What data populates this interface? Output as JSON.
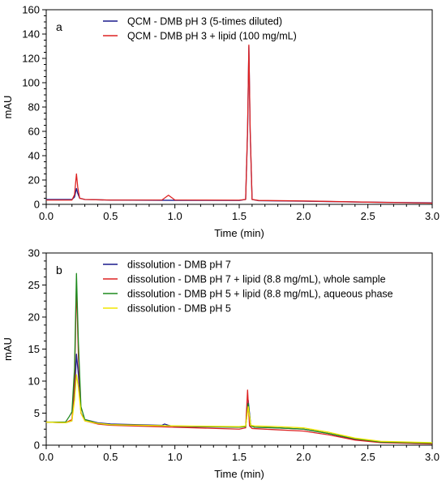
{
  "chart_data": [
    {
      "panel": "a",
      "type": "line",
      "xlabel": "Time (min)",
      "ylabel": "mAU",
      "xlim": [
        0,
        3.0
      ],
      "ylim": [
        0,
        160
      ],
      "xticks": [
        "0.0",
        "0.5",
        "1.0",
        "1.5",
        "2.0",
        "2.5",
        "3.0"
      ],
      "yticks": [
        "0",
        "20",
        "40",
        "60",
        "80",
        "100",
        "120",
        "140",
        "160"
      ],
      "grid": false,
      "legend_position": "top-left",
      "series": [
        {
          "name": "QCM - DMB pH 3 (5-times diluted)",
          "color": "#1a1a8c",
          "x": [
            0,
            0.2,
            0.22,
            0.235,
            0.245,
            0.26,
            0.3,
            0.5,
            1.0,
            1.5,
            1.55,
            1.565,
            1.575,
            1.585,
            1.6,
            1.65,
            2.0,
            2.5,
            3.0
          ],
          "y": [
            4,
            4,
            6,
            13,
            9,
            5,
            4,
            3.5,
            3.3,
            3.2,
            4,
            60,
            130,
            60,
            4,
            3.0,
            2.6,
            1.8,
            1.2
          ]
        },
        {
          "name": "QCM - DMB pH 3 + lipid (100 mg/mL)",
          "color": "#dd2222",
          "x": [
            0,
            0.2,
            0.22,
            0.235,
            0.245,
            0.26,
            0.3,
            0.5,
            0.9,
            0.95,
            1.0,
            1.5,
            1.55,
            1.565,
            1.575,
            1.585,
            1.6,
            1.65,
            2.0,
            2.5,
            3.0
          ],
          "y": [
            3.5,
            3.5,
            8,
            25,
            14,
            5,
            4,
            3.5,
            3.6,
            7.5,
            3.6,
            3.4,
            4,
            62,
            131,
            62,
            4,
            3.2,
            2.8,
            1.8,
            1.0
          ]
        }
      ]
    },
    {
      "panel": "b",
      "type": "line",
      "xlabel": "Time (min)",
      "ylabel": "mAU",
      "xlim": [
        0,
        3.0
      ],
      "ylim": [
        0,
        30
      ],
      "xticks": [
        "0.0",
        "0.5",
        "1.0",
        "1.5",
        "2.0",
        "2.5",
        "3.0"
      ],
      "yticks": [
        "0",
        "5",
        "10",
        "15",
        "20",
        "25",
        "30"
      ],
      "grid": false,
      "legend_position": "top-left",
      "series": [
        {
          "name": "dissolution - DMB pH 7",
          "color": "#1a1a8c",
          "x": [
            0,
            0.15,
            0.2,
            0.22,
            0.235,
            0.25,
            0.27,
            0.3,
            0.4,
            0.5,
            0.9,
            0.92,
            0.95,
            1.0,
            1.5,
            1.55,
            1.57,
            1.59,
            1.62,
            1.8,
            2.0,
            2.2,
            2.4,
            2.6,
            3.0
          ],
          "y": [
            3.6,
            3.5,
            3.8,
            8,
            14.2,
            11,
            5,
            4.0,
            3.5,
            3.3,
            3.1,
            3.3,
            3.1,
            2.9,
            2.8,
            2.9,
            7.0,
            3.0,
            2.8,
            2.7,
            2.5,
            1.8,
            0.9,
            0.5,
            0.3
          ]
        },
        {
          "name": "dissolution - DMB pH 7 + lipid (8.8 mg/mL), whole sample",
          "color": "#dd2222",
          "x": [
            0,
            0.15,
            0.2,
            0.22,
            0.235,
            0.25,
            0.27,
            0.3,
            0.4,
            0.5,
            1.0,
            1.5,
            1.55,
            1.565,
            1.58,
            1.6,
            1.8,
            2.0,
            2.2,
            2.4,
            2.6,
            3.0
          ],
          "y": [
            3.6,
            3.5,
            4.0,
            10,
            25.0,
            14,
            5,
            3.8,
            3.3,
            3.1,
            2.8,
            2.5,
            2.7,
            8.6,
            3.0,
            2.6,
            2.4,
            2.2,
            1.6,
            0.8,
            0.4,
            0.2
          ]
        },
        {
          "name": "dissolution - DMB pH 5 + lipid (8.8 mg/mL), aqueous phase",
          "color": "#1f8a1f",
          "x": [
            0,
            0.15,
            0.18,
            0.2,
            0.22,
            0.235,
            0.25,
            0.27,
            0.3,
            0.4,
            0.5,
            1.0,
            1.5,
            1.55,
            1.57,
            1.59,
            1.62,
            1.8,
            2.0,
            2.2,
            2.4,
            2.6,
            3.0
          ],
          "y": [
            3.6,
            3.6,
            4.5,
            5.2,
            12,
            26.8,
            16,
            6,
            4.0,
            3.4,
            3.2,
            3.0,
            2.8,
            2.9,
            6.5,
            3.0,
            2.8,
            2.7,
            2.5,
            1.8,
            1.0,
            0.5,
            0.3
          ]
        },
        {
          "name": "dissolution - DMB pH 5",
          "color": "#f2e600",
          "x": [
            0,
            0.15,
            0.2,
            0.22,
            0.235,
            0.25,
            0.27,
            0.3,
            0.4,
            0.5,
            1.0,
            1.5,
            1.55,
            1.57,
            1.59,
            1.62,
            1.8,
            2.0,
            2.2,
            2.4,
            2.6,
            3.0
          ],
          "y": [
            3.6,
            3.5,
            3.8,
            7,
            11.0,
            9,
            5,
            3.8,
            3.4,
            3.2,
            3.0,
            2.9,
            3.0,
            6.0,
            3.1,
            3.0,
            2.9,
            2.7,
            2.0,
            1.1,
            0.6,
            0.4
          ]
        }
      ]
    }
  ]
}
